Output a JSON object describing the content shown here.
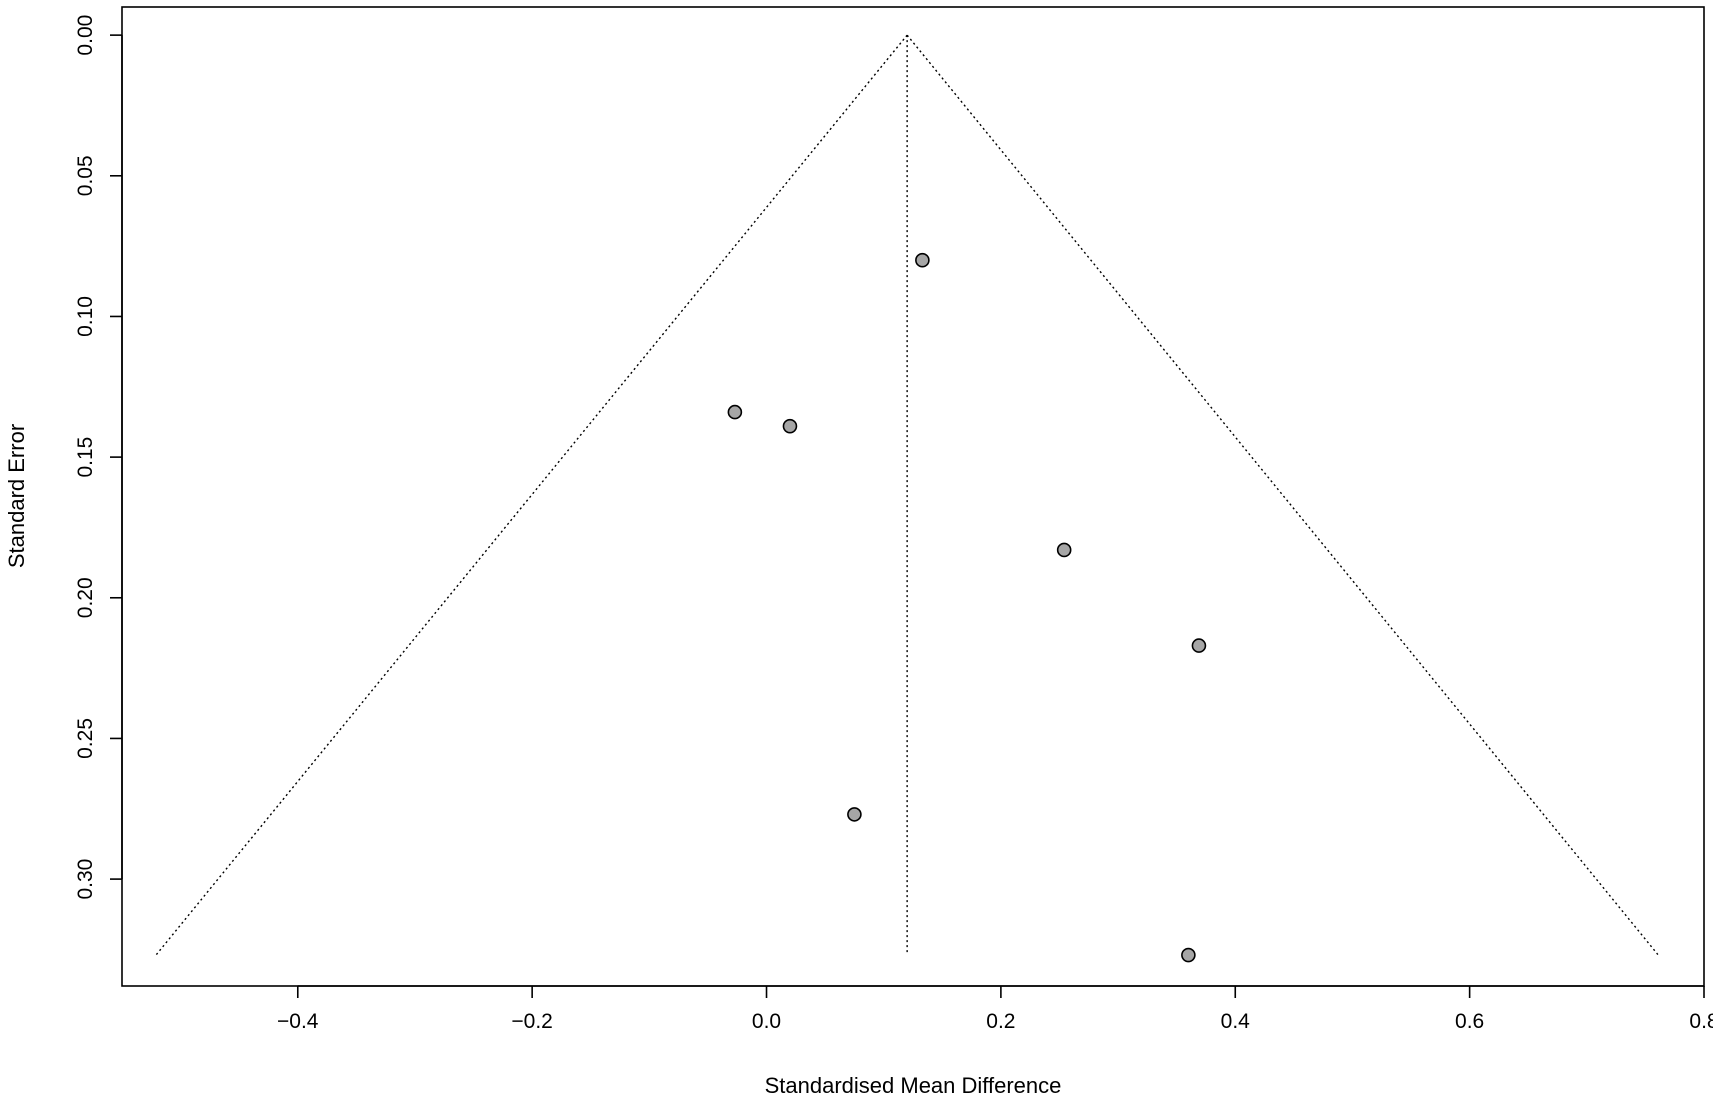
{
  "chart_data": {
    "type": "scatter",
    "xlabel": "Standardised Mean Difference",
    "ylabel": "Standard Error",
    "xlim": [
      -0.55,
      0.8
    ],
    "ylim": [
      0.338,
      -0.01
    ],
    "y_reversed": true,
    "x_ticks": [
      -0.4,
      -0.2,
      0.0,
      0.2,
      0.4,
      0.6,
      0.8
    ],
    "x_tick_labels": [
      "−0.4",
      "−0.2",
      "0.0",
      "0.2",
      "0.4",
      "0.6",
      "0.8"
    ],
    "y_ticks": [
      0.0,
      0.05,
      0.1,
      0.15,
      0.2,
      0.25,
      0.3
    ],
    "y_tick_labels": [
      "0.00",
      "0.05",
      "0.10",
      "0.15",
      "0.20",
      "0.25",
      "0.30"
    ],
    "grid": false,
    "pooled_estimate": 0.12,
    "funnel_se_max": 0.327,
    "funnel_lower_bound_at_max": -0.521,
    "funnel_upper_bound_at_max": 0.761,
    "points": [
      {
        "x": 0.133,
        "y": 0.08
      },
      {
        "x": -0.027,
        "y": 0.134
      },
      {
        "x": 0.02,
        "y": 0.139
      },
      {
        "x": 0.254,
        "y": 0.183
      },
      {
        "x": 0.369,
        "y": 0.217
      },
      {
        "x": 0.075,
        "y": 0.277
      },
      {
        "x": 0.36,
        "y": 0.327
      }
    ],
    "colors": {
      "point_fill": "#a6a6a6",
      "point_stroke": "#000000",
      "axis": "#000000",
      "funnel_line": "#000000"
    }
  }
}
